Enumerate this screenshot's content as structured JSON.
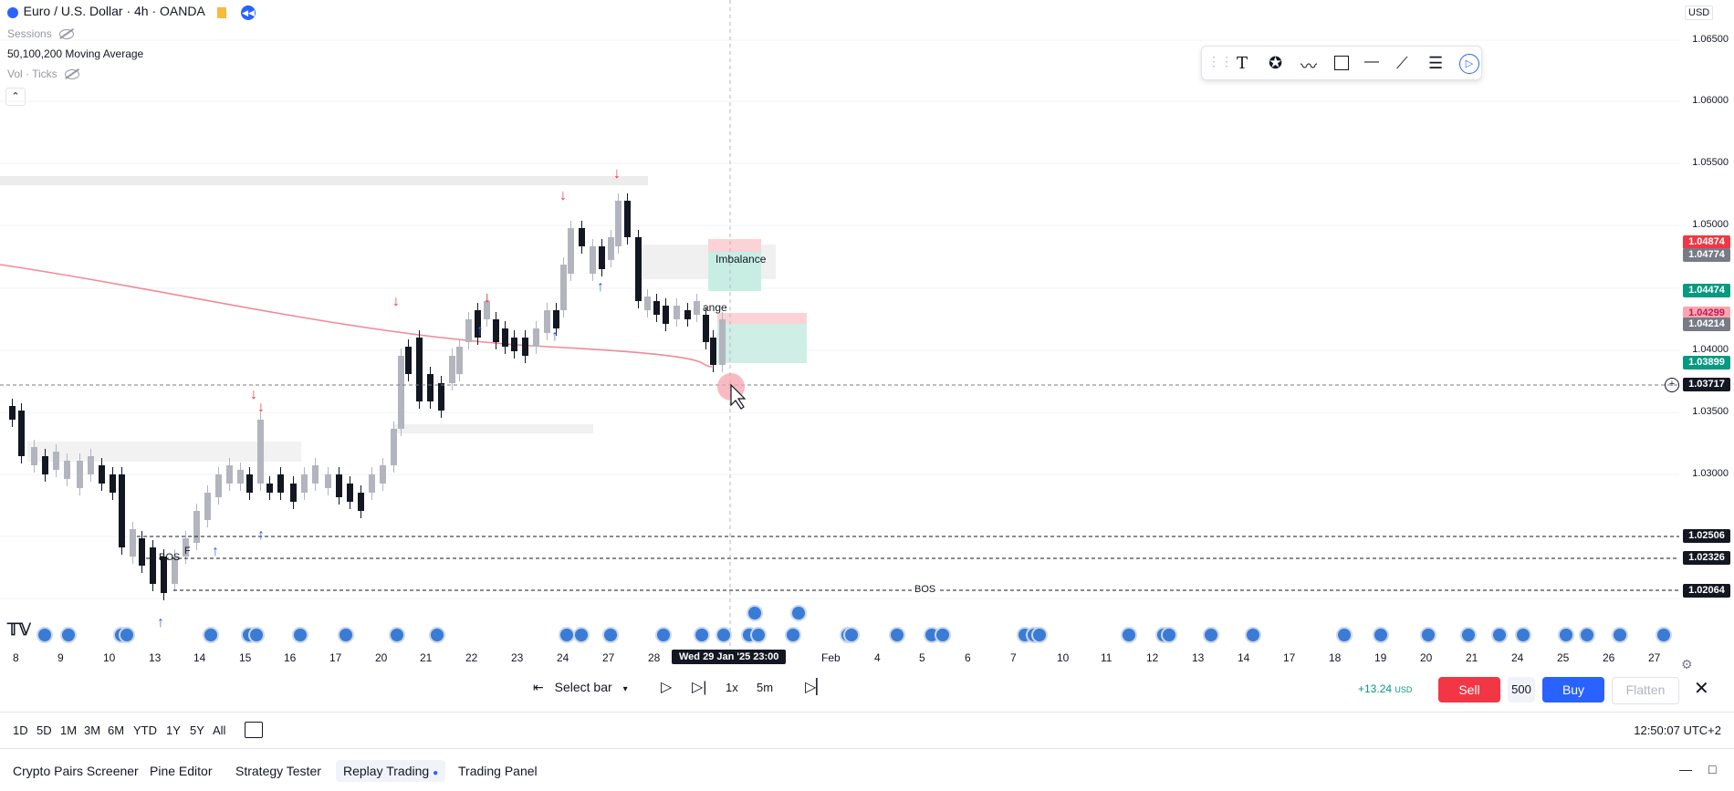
{
  "legend": {
    "symbol_title": "Euro / U.S. Dollar · 4h · OANDA",
    "sessions": "Sessions",
    "moving_average": "50,100,200 Moving Average",
    "volume": "Vol · Ticks"
  },
  "currency": "USD",
  "price_axis": {
    "ticks": [
      "1.06500",
      "1.06000",
      "1.05500",
      "1.05000",
      "1.04000",
      "1.03500",
      "1.03000"
    ],
    "labels": [
      {
        "text": "1.04874",
        "color": "#f23645"
      },
      {
        "text": "1.04774",
        "color": "#787b86"
      },
      {
        "text": "1.04474",
        "color": "#089981"
      },
      {
        "text": "1.04299",
        "color": "#f7a8ae"
      },
      {
        "text": "1.04214",
        "color": "#787b86"
      },
      {
        "text": "1.03899",
        "color": "#089981"
      },
      {
        "text": "1.03717",
        "color": "#131722"
      },
      {
        "text": "1.02506",
        "color": "#131722"
      },
      {
        "text": "1.02326",
        "color": "#131722"
      },
      {
        "text": "1.02064",
        "color": "#131722"
      }
    ]
  },
  "annotations": {
    "imbalance": "Imbalance",
    "range_partial": "ange",
    "bos_left": "BOS",
    "bos_right": "BOS",
    "f_mark": "F"
  },
  "time_axis": {
    "labels": [
      "8",
      "9",
      "10",
      "13",
      "14",
      "15",
      "16",
      "17",
      "20",
      "21",
      "22",
      "23",
      "24",
      "27",
      "28",
      "Feb",
      "4",
      "5",
      "6",
      "7",
      "10",
      "11",
      "12",
      "13",
      "14",
      "17",
      "18",
      "19",
      "20",
      "21",
      "24",
      "25",
      "26",
      "27"
    ],
    "crosshair_label": "Wed 29 Jan '25   23:00"
  },
  "replay": {
    "select_bar": "Select bar",
    "speed": "1x",
    "interval": "5m",
    "pnl": "+13.24",
    "pnl_unit": "USD",
    "sell": "Sell",
    "qty": "500",
    "buy": "Buy",
    "flatten": "Flatten"
  },
  "ranges": [
    "1D",
    "5D",
    "1M",
    "3M",
    "6M",
    "YTD",
    "1Y",
    "5Y",
    "All"
  ],
  "clock": "12:50:07 UTC+2",
  "tabs": [
    "Crypto Pairs Screener",
    "Pine Editor",
    "Strategy Tester",
    "Replay Trading",
    "Trading Panel"
  ],
  "colors": {
    "accent": "#2962ff",
    "sell": "#f23645",
    "buy": "#2962ff",
    "up": "#089981",
    "down": "#f23645"
  },
  "icons": [
    "text-icon",
    "emoji-icon",
    "path-icon",
    "rectangle-icon",
    "horizontal-line-icon",
    "trend-line-icon",
    "fib-icon",
    "cursor-icon"
  ]
}
